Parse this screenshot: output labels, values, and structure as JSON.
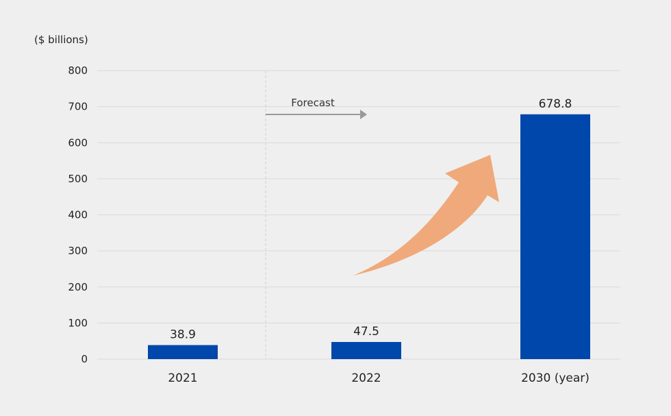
{
  "chart_data": {
    "type": "bar",
    "ylabel": "($ billions)",
    "categories": [
      "2021",
      "2022",
      "2030 (year)"
    ],
    "values": [
      38.9,
      47.5,
      678.8
    ],
    "value_labels": [
      "38.9",
      "47.5",
      "678.8"
    ],
    "ylim": [
      0,
      800
    ],
    "yticks": [
      0,
      100,
      200,
      300,
      400,
      500,
      600,
      700,
      800
    ],
    "grid": true,
    "annotation": "Forecast",
    "colors": {
      "bar": "#0047AB",
      "growth_arrow": "#F0A97A",
      "forecast_arrow": "#999999",
      "gridline": "#d9d9d9",
      "divider": "#cfcfcf"
    }
  }
}
